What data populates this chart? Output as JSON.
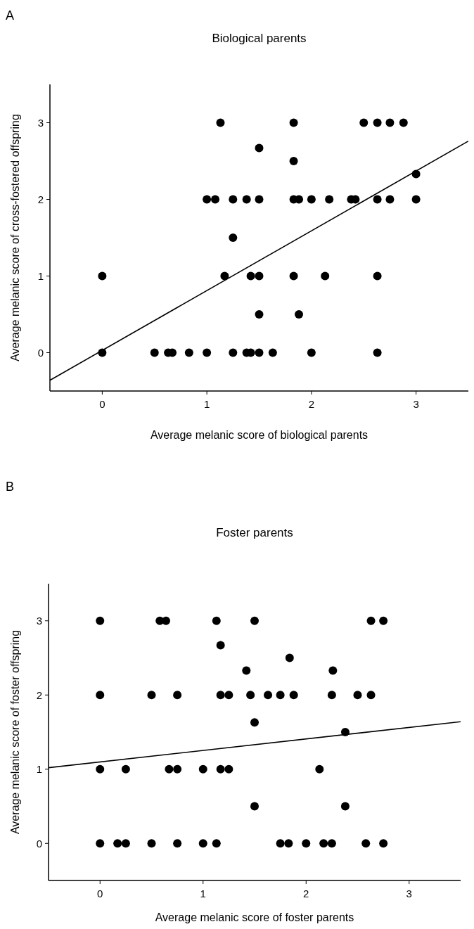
{
  "chart_data": [
    {
      "type": "scatter",
      "title": "Biological parents",
      "xlabel": "Average melanic score of biological parents",
      "ylabel": "Average melanic score of cross-fostered offspring",
      "annotations": [
        "A"
      ],
      "xlim": [
        -0.5,
        3.5
      ],
      "ylim": [
        -0.5,
        3.5
      ],
      "xticks": [
        0,
        1,
        2,
        3
      ],
      "yticks": [
        0,
        1,
        2,
        3
      ],
      "series": [
        {
          "type": "scatter",
          "color": "#000000",
          "marker": "circle",
          "x": [
            1.13,
            1.83,
            2.5,
            2.63,
            2.75,
            2.88,
            1.5,
            1.83,
            3.0,
            1.0,
            1.08,
            1.25,
            1.38,
            1.5,
            1.83,
            1.88,
            2.0,
            2.17,
            2.38,
            2.42,
            2.63,
            2.75,
            3.0,
            1.25,
            0,
            1.17,
            1.42,
            1.5,
            1.83,
            2.13,
            2.63,
            1.5,
            1.88,
            0,
            0.5,
            0.63,
            0.67,
            0.83,
            1.0,
            1.25,
            1.38,
            1.42,
            1.5,
            1.63,
            2.0,
            2.63
          ],
          "values": [
            3,
            3,
            3,
            3,
            3,
            3,
            2.67,
            2.5,
            2.33,
            2,
            2,
            2,
            2,
            2,
            2,
            2,
            2,
            2,
            2,
            2,
            2,
            2,
            2,
            1.5,
            1,
            1,
            1,
            1,
            1,
            1,
            1,
            0.5,
            0.5,
            0,
            0,
            0,
            0,
            0,
            0,
            0,
            0,
            0,
            0,
            0,
            0,
            0
          ]
        },
        {
          "type": "line",
          "color": "#000000",
          "marker": "none",
          "line_style": "solid",
          "x": [
            -0.5,
            3.5
          ],
          "values": [
            -0.36,
            2.76
          ]
        }
      ]
    },
    {
      "type": "scatter",
      "title": "Foster parents",
      "xlabel": "Average melanic score of foster parents",
      "ylabel": "Average melanic score of foster offspring",
      "annotations": [
        "B"
      ],
      "xlim": [
        -0.5,
        3.5
      ],
      "ylim": [
        -0.5,
        3.5
      ],
      "xticks": [
        0,
        1,
        2,
        3
      ],
      "yticks": [
        0,
        1,
        2,
        3
      ],
      "series": [
        {
          "type": "scatter",
          "color": "#000000",
          "marker": "circle",
          "x": [
            0,
            0.58,
            0.64,
            1.13,
            1.5,
            2.63,
            2.75,
            1.17,
            1.42,
            2.26,
            1.84,
            0,
            0.5,
            0.75,
            1.17,
            1.25,
            1.46,
            1.63,
            1.75,
            1.88,
            2.25,
            2.5,
            2.63,
            1.5,
            2.38,
            0,
            0.25,
            0.67,
            0.75,
            1.0,
            1.17,
            1.25,
            2.13,
            1.5,
            2.38,
            0,
            0.17,
            0.25,
            0.5,
            0.75,
            1.0,
            1.13,
            1.75,
            1.83,
            2.0,
            2.17,
            2.25,
            2.58,
            2.75
          ],
          "values": [
            3,
            3,
            3,
            3,
            3,
            3,
            3,
            2.67,
            2.33,
            2.33,
            2.5,
            2,
            2,
            2,
            2,
            2,
            2,
            2,
            2,
            2,
            2,
            2,
            2,
            1.63,
            1.5,
            1,
            1,
            1,
            1,
            1,
            1,
            1,
            1,
            0.5,
            0.5,
            0,
            0,
            0,
            0,
            0,
            0,
            0,
            0,
            0,
            0,
            0,
            0,
            0,
            0
          ]
        },
        {
          "type": "line",
          "color": "#000000",
          "marker": "none",
          "line_style": "solid",
          "x": [
            -0.5,
            3.5
          ],
          "values": [
            1.02,
            1.64
          ]
        }
      ]
    }
  ]
}
